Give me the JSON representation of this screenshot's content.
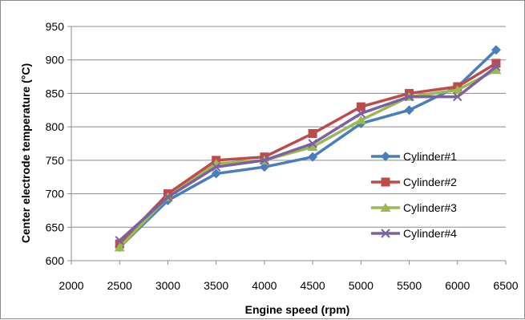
{
  "chart_data": {
    "type": "line",
    "xlabel": "Engine speed (rpm)",
    "ylabel": "Center electrode temperature (°C)",
    "xlim": [
      2000,
      6500
    ],
    "ylim": [
      600,
      950
    ],
    "xticks": [
      2000,
      2500,
      3000,
      3500,
      4000,
      4500,
      5000,
      5500,
      6000,
      6500
    ],
    "yticks": [
      600,
      650,
      700,
      750,
      800,
      850,
      900,
      950
    ],
    "grid": "horizontal",
    "legend_position": "right",
    "series": [
      {
        "name": "Cylinder#1",
        "color": "#4A7EBB",
        "marker": "diamond",
        "x": [
          2500,
          3000,
          3500,
          4000,
          4500,
          5000,
          5500,
          6000,
          6400
        ],
        "values": [
          620,
          690,
          730,
          740,
          755,
          805,
          825,
          860,
          915
        ]
      },
      {
        "name": "Cylinder#2",
        "color": "#BE4B48",
        "marker": "square",
        "x": [
          2500,
          3000,
          3500,
          4000,
          4500,
          5000,
          5500,
          6000,
          6400
        ],
        "values": [
          625,
          700,
          750,
          755,
          790,
          830,
          850,
          860,
          895
        ]
      },
      {
        "name": "Cylinder#3",
        "color": "#98B954",
        "marker": "triangle",
        "x": [
          2500,
          3000,
          3500,
          4000,
          4500,
          5000,
          5500,
          6000,
          6400
        ],
        "values": [
          620,
          695,
          745,
          750,
          770,
          810,
          845,
          855,
          885
        ]
      },
      {
        "name": "Cylinder#4",
        "color": "#7D60A0",
        "marker": "x",
        "x": [
          2500,
          3000,
          3500,
          4000,
          4500,
          5000,
          5500,
          6000,
          6400
        ],
        "values": [
          630,
          695,
          740,
          750,
          775,
          820,
          845,
          845,
          890
        ]
      }
    ]
  }
}
